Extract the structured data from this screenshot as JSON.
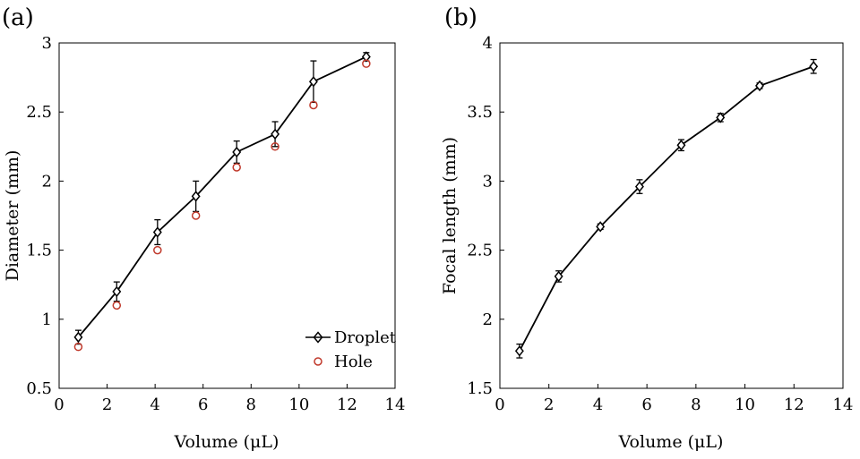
{
  "chart_data": [
    {
      "panel_label": "(a)",
      "type": "line",
      "title": "",
      "xlabel": "Volume (μL)",
      "ylabel": "Diameter (mm)",
      "xlim": [
        0,
        14
      ],
      "ylim": [
        0.5,
        3
      ],
      "xticks": [
        "0",
        "2",
        "4",
        "6",
        "8",
        "10",
        "12",
        "14"
      ],
      "yticks": [
        "0.5",
        "1",
        "1.5",
        "2",
        "2.5",
        "3"
      ],
      "grid": false,
      "legend_position": "bottom-right",
      "series": [
        {
          "name": "Droplet",
          "marker": "diamond",
          "color": "#000000",
          "x": [
            0.8,
            2.4,
            4.1,
            5.7,
            7.4,
            9.0,
            10.6,
            12.8
          ],
          "y": [
            0.87,
            1.2,
            1.63,
            1.89,
            2.21,
            2.34,
            2.72,
            2.9
          ],
          "err": [
            0.05,
            0.07,
            0.09,
            0.11,
            0.08,
            0.09,
            0.15,
            0.03
          ]
        },
        {
          "name": "Hole",
          "marker": "circle",
          "color": "#c0392b",
          "x": [
            0.8,
            2.4,
            4.1,
            5.7,
            7.4,
            9.0,
            10.6,
            12.8
          ],
          "y": [
            0.8,
            1.1,
            1.5,
            1.75,
            2.1,
            2.25,
            2.55,
            2.85
          ]
        }
      ]
    },
    {
      "panel_label": "(b)",
      "type": "line",
      "title": "",
      "xlabel": "Volume (μL)",
      "ylabel": "Focal length (mm)",
      "xlim": [
        0,
        14
      ],
      "ylim": [
        1.5,
        4
      ],
      "xticks": [
        "0",
        "2",
        "4",
        "6",
        "8",
        "10",
        "12",
        "14"
      ],
      "yticks": [
        "1.5",
        "2",
        "2.5",
        "3",
        "3.5",
        "4"
      ],
      "grid": false,
      "series": [
        {
          "marker": "diamond",
          "color": "#000000",
          "x": [
            0.8,
            2.4,
            4.1,
            5.7,
            7.4,
            9.0,
            10.6,
            12.8
          ],
          "y": [
            1.77,
            2.31,
            2.67,
            2.96,
            3.26,
            3.46,
            3.69,
            3.83
          ],
          "err": [
            0.05,
            0.04,
            0.02,
            0.05,
            0.04,
            0.03,
            0.02,
            0.05
          ]
        }
      ]
    }
  ]
}
